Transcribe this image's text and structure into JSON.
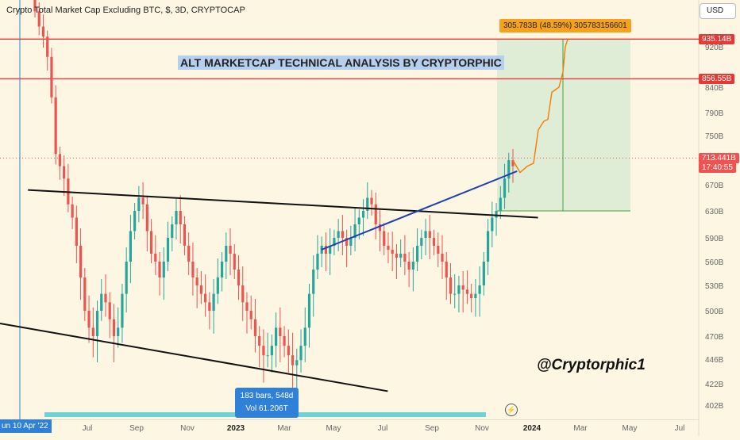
{
  "header": {
    "title": "Crypto Total Market Cap Excluding BTC, $, 3D, CRYPTOCAP",
    "currency": "USD"
  },
  "annotations": {
    "banner": "ALT MARKETCAP TECHNICAL ANALYSIS BY CRYPTORPHIC",
    "watermark": "@Cryptorphic1",
    "range_tooltip_line1": "183 bars, 548d",
    "range_tooltip_line2": "Vol 61.206T",
    "target_label": "305.783B (48.59%) 305783156601",
    "date_badge": "un 10 Apr '22"
  },
  "price_badges": {
    "resistance_top": "935.14B",
    "resistance_2": "856.55B",
    "current_price": "713.441B",
    "countdown": "17:40:55"
  },
  "colors": {
    "up": "#26a69a",
    "down": "#ef5350",
    "resistance": "#e53935",
    "trendline_blue": "#1e40b4",
    "projection": "#f57c00",
    "target_zone": "#d9ead3"
  },
  "chart_data": {
    "type": "candlestick",
    "title": "Crypto Total Market Cap Excluding BTC, $, 3D, CRYPTOCAP",
    "y_unit": "USD (billions)",
    "y_ticks": [
      "920B",
      "840B",
      "790B",
      "750B",
      "670B",
      "630B",
      "590B",
      "560B",
      "530B",
      "500B",
      "470B",
      "446B",
      "422B",
      "402B"
    ],
    "x_ticks": [
      "Jul",
      "Sep",
      "Nov",
      "2023",
      "Mar",
      "May",
      "Jul",
      "Sep",
      "Nov",
      "2024",
      "Mar",
      "May",
      "Jul"
    ],
    "horizontal_levels": [
      935.14,
      856.55
    ],
    "current_price": 713.441,
    "closes": [
      990,
      960,
      940,
      900,
      820,
      720,
      700,
      680,
      640,
      620,
      580,
      540,
      500,
      480,
      470,
      500,
      520,
      510,
      490,
      470,
      480,
      520,
      560,
      600,
      630,
      650,
      640,
      600,
      570,
      560,
      540,
      560,
      590,
      610,
      630,
      610,
      580,
      560,
      540,
      530,
      520,
      510,
      500,
      520,
      540,
      560,
      580,
      570,
      550,
      530,
      510,
      500,
      490,
      470,
      460,
      450,
      450,
      460,
      480,
      470,
      460,
      450,
      440,
      445,
      460,
      480,
      520,
      550,
      570,
      580,
      570,
      580,
      590,
      600,
      590,
      580,
      590,
      610,
      620,
      630,
      650,
      640,
      610,
      600,
      580,
      575,
      570,
      565,
      570,
      560,
      550,
      560,
      580,
      590,
      600,
      590,
      580,
      570,
      560,
      540,
      520,
      520,
      530,
      525,
      520,
      515,
      520,
      530,
      560,
      600,
      620,
      630,
      650,
      680,
      710,
      700
    ],
    "trend_top": {
      "from": [
        0.04,
        662
      ],
      "to": [
        0.77,
        620
      ]
    },
    "trend_bottom": {
      "from": [
        0.0,
        485
      ],
      "to": [
        0.555,
        415
      ]
    },
    "trend_blue": {
      "from": [
        0.46,
        575
      ],
      "to": [
        0.74,
        692
      ]
    },
    "target": {
      "entry": 630,
      "target": 935.14,
      "change": "305.783B (48.59%)"
    }
  }
}
